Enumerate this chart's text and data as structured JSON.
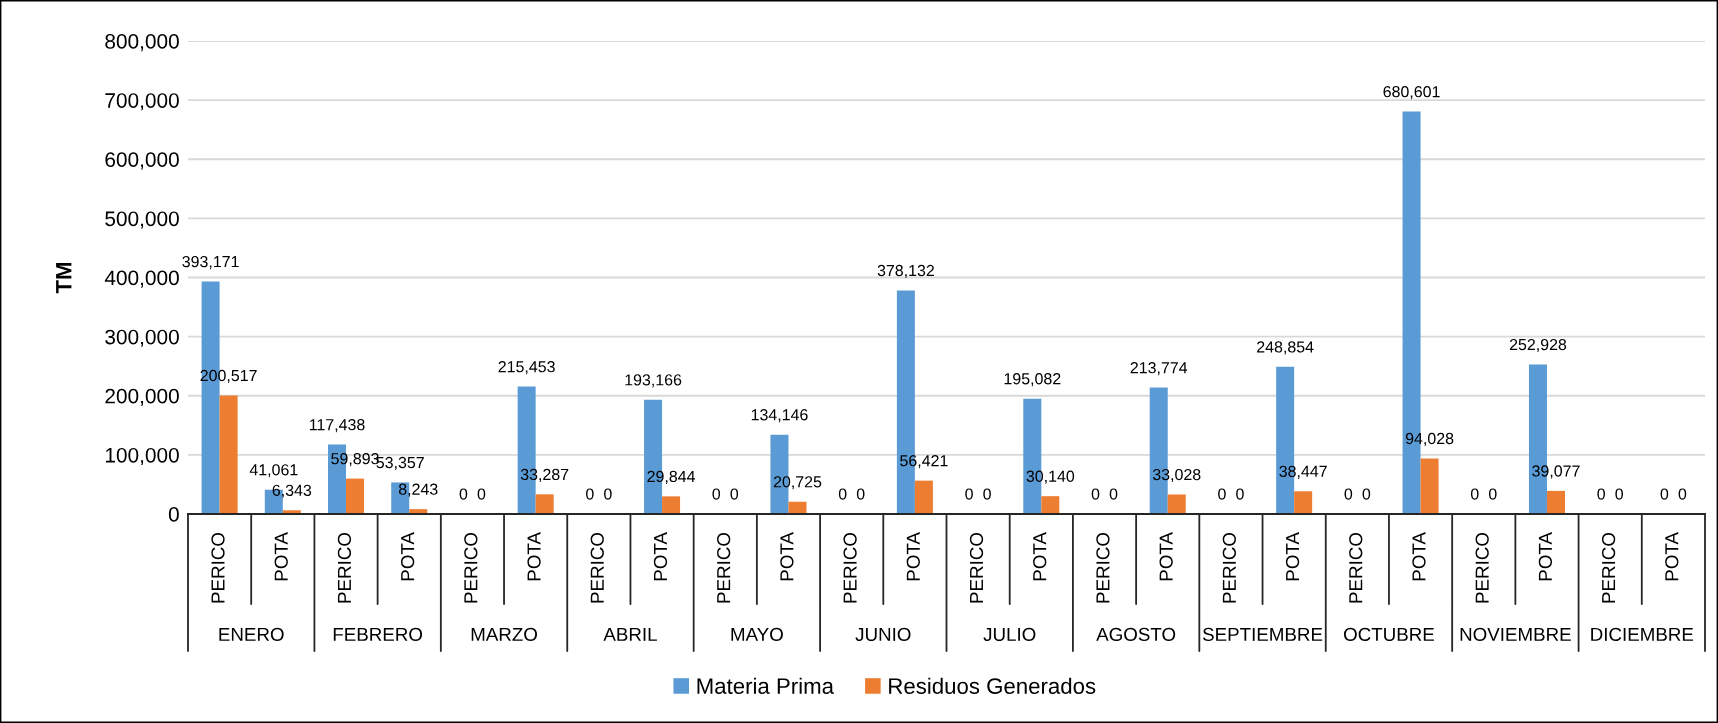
{
  "chart_data": {
    "type": "bar",
    "ylabel": "TM",
    "categories": [
      "PERICO",
      "POTA",
      "PERICO",
      "POTA",
      "PERICO",
      "POTA",
      "PERICO",
      "POTA",
      "PERICO",
      "POTA",
      "PERICO",
      "POTA",
      "PERICO",
      "POTA",
      "PERICO",
      "POTA",
      "PERICO",
      "POTA",
      "PERICO",
      "POTA",
      "PERICO",
      "POTA",
      "PERICO",
      "POTA"
    ],
    "annotations": [
      "ENERO",
      "FEBRERO",
      "MARZO",
      "ABRIL",
      "MAYO",
      "JUNIO",
      "JULIO",
      "AGOSTO",
      "SEPTIEMBRE",
      "OCTUBRE",
      "NOVIEMBRE",
      "DICIEMBRE"
    ],
    "series": [
      {
        "name": "Materia Prima",
        "color": "#5b9bd5",
        "values": [
          393171,
          41061,
          117438,
          53357,
          0,
          215453,
          0,
          193166,
          0,
          134146,
          0,
          378132,
          0,
          195082,
          0,
          213774,
          0,
          248854,
          0,
          680601,
          0,
          252928,
          0,
          0
        ],
        "value_labels": [
          "393,171",
          "41,061",
          "117,438",
          "53,357",
          "0",
          "215,453",
          "0",
          "193,166",
          "0",
          "134,146",
          "0",
          "378,132",
          "0",
          "195,082",
          "0",
          "213,774",
          "0",
          "248,854",
          "0",
          "680,601",
          "0",
          "252,928",
          "0",
          "0"
        ]
      },
      {
        "name": "Residuos Generados",
        "color": "#ed7d31",
        "values": [
          200517,
          6343,
          59893,
          8243,
          0,
          33287,
          0,
          29844,
          0,
          20725,
          0,
          56421,
          0,
          30140,
          0,
          33028,
          0,
          38447,
          0,
          94028,
          0,
          39077,
          0,
          0
        ],
        "value_labels": [
          "200,517",
          "6,343",
          "59,893",
          "8,243",
          "0",
          "33,287",
          "0",
          "29,844",
          "0",
          "20,725",
          "0",
          "56,421",
          "0",
          "30,140",
          "0",
          "33,028",
          "0",
          "38,447",
          "0",
          "94,028",
          "0",
          "39,077",
          "0",
          "0"
        ]
      }
    ],
    "ylim": [
      0,
      800000
    ],
    "yticks": [
      0,
      {
        "value": 100000,
        "label": "100,000"
      },
      {
        "value": 200000,
        "label": "200,000"
      },
      {
        "value": 300000,
        "label": "300,000"
      },
      {
        "value": 400000,
        "label": "400,000"
      },
      {
        "value": 500000,
        "label": "500,000"
      },
      {
        "value": 600000,
        "label": "600,000"
      },
      {
        "value": 700000,
        "label": "700,000"
      },
      {
        "value": 800000,
        "label": "800,000"
      }
    ],
    "grid": "y",
    "legend": "bottom"
  }
}
